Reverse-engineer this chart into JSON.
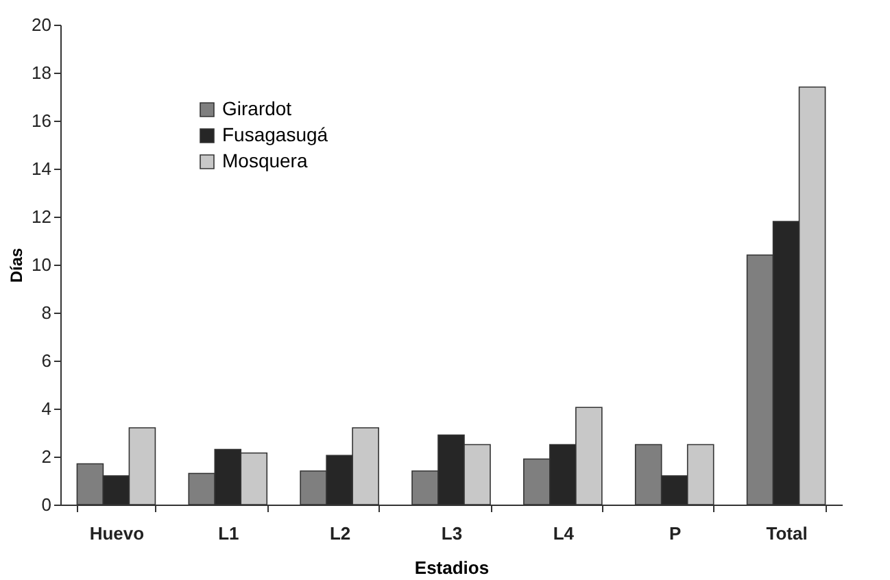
{
  "chart_data": {
    "type": "bar",
    "xlabel": "Estadios",
    "ylabel": "Días",
    "categories": [
      "Huevo",
      "L1",
      "L2",
      "L3",
      "L4",
      "P",
      "Total"
    ],
    "series": [
      {
        "name": "Girardot",
        "color": "#7f7f7f",
        "values": [
          1.7,
          1.3,
          1.4,
          1.4,
          1.9,
          2.5,
          10.4
        ]
      },
      {
        "name": "Fusagasugá",
        "color": "#262626",
        "values": [
          1.2,
          2.3,
          2.05,
          2.9,
          2.5,
          1.2,
          11.8
        ]
      },
      {
        "name": "Mosquera",
        "color": "#c8c8c8",
        "values": [
          3.2,
          2.15,
          3.2,
          2.5,
          4.05,
          2.5,
          17.4
        ]
      }
    ],
    "ylim": [
      0,
      20
    ],
    "yticks": [
      0,
      2,
      4,
      6,
      8,
      10,
      12,
      14,
      16,
      18,
      20
    ],
    "grid": false,
    "legend": "top left"
  }
}
